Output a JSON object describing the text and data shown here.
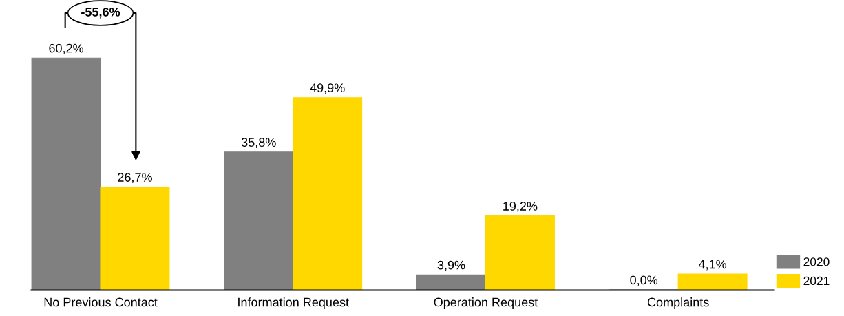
{
  "chart_data": {
    "type": "bar",
    "categories": [
      "No Previous Contact",
      "Information Request",
      "Operation Request",
      "Complaints"
    ],
    "series": [
      {
        "name": "2020",
        "color": "#808080",
        "values": [
          60.2,
          35.8,
          3.9,
          0.0
        ],
        "value_labels": [
          "60,2%",
          "35,8%",
          "3,9%",
          "0,0%"
        ]
      },
      {
        "name": "2021",
        "color": "#ffd800",
        "values": [
          26.7,
          49.9,
          19.2,
          4.1
        ],
        "value_labels": [
          "26,7%",
          "49,9%",
          "19,2%",
          "4,1%"
        ]
      }
    ],
    "annotations": [
      "-55,6%"
    ],
    "legend": "bottom right",
    "grid": false
  }
}
